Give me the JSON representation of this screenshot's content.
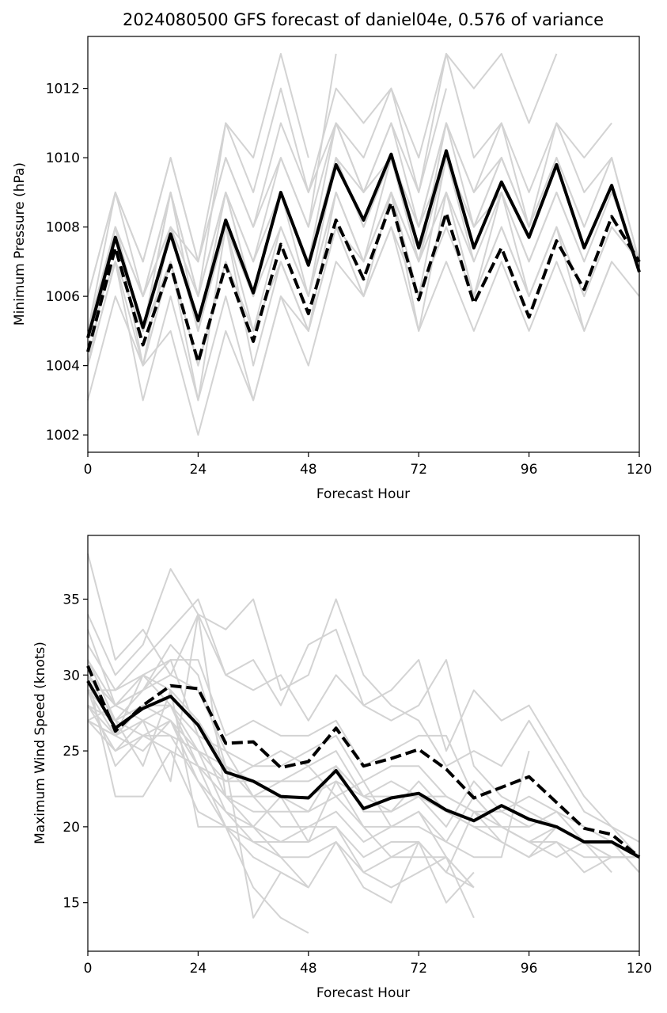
{
  "chart_data": [
    {
      "type": "line",
      "title": "2024080500 GFS forecast of daniel04e, 0.576 of variance",
      "xlabel": "Forecast Hour",
      "ylabel": "Minimum Pressure (hPa)",
      "xlim": [
        0,
        120
      ],
      "ylim": [
        1001.5,
        1013.5
      ],
      "xticks": [
        0,
        24,
        48,
        72,
        96,
        120
      ],
      "yticks": [
        1002,
        1004,
        1006,
        1008,
        1010,
        1012
      ],
      "grid": false,
      "x": [
        0,
        6,
        12,
        18,
        24,
        30,
        36,
        42,
        48,
        54,
        60,
        66,
        72,
        78,
        84,
        90,
        96,
        102,
        108,
        114,
        120
      ],
      "series": [
        {
          "style": "solid",
          "color": "#000000",
          "values": [
            1004.8,
            1007.7,
            1005.1,
            1007.8,
            1005.3,
            1008.2,
            1006.1,
            1009.0,
            1006.9,
            1009.8,
            1008.2,
            1010.1,
            1007.4,
            1010.2,
            1007.4,
            1009.3,
            1007.7,
            1009.8,
            1007.4,
            1009.2,
            1006.7
          ]
        },
        {
          "style": "dashed",
          "color": "#000000",
          "values": [
            1004.4,
            1007.4,
            1004.6,
            1006.9,
            1004.1,
            1006.9,
            1004.7,
            1007.5,
            1005.5,
            1008.2,
            1006.5,
            1008.7,
            1005.9,
            1008.4,
            1005.8,
            1007.4,
            1005.4,
            1007.6,
            1006.2,
            1008.3,
            1007.0
          ]
        }
      ],
      "ensemble_color": "#d3d3d3",
      "ensemble": [
        [
          1003.0,
          1006.0,
          1004.0,
          1005.0,
          1002.0,
          1005.0,
          1003.0,
          1006.0,
          1005.0,
          1008.0,
          1006.0,
          1009.0,
          1005.0,
          1009.0,
          1006.0,
          1009.0,
          1006.0,
          1008.0,
          1005.0,
          1007.0,
          1006.0
        ],
        [
          1004.0,
          1007.0,
          1005.0,
          1007.0,
          1004.0,
          1007.0,
          1005.0,
          1007.0,
          1005.0,
          1008.0,
          1006.0,
          1008.0,
          1006.0,
          1008.0,
          1006.0,
          1008.0,
          1006.0,
          1008.0,
          1006.0,
          1008.0,
          1007.0
        ],
        [
          1005.0,
          1008.0,
          1006.0,
          1008.0,
          1006.0,
          1009.0,
          1006.0,
          1009.0,
          1007.0,
          1010.0,
          1009.0,
          1010.0,
          1007.0,
          1010.0,
          1008.0,
          1010.0,
          1008.0,
          1010.0,
          1008.0,
          1010.0,
          1007.0
        ],
        [
          1006.0,
          1009.0,
          1007.0,
          1010.0,
          1007.0,
          1010.0,
          1008.0,
          1011.0,
          1009.0,
          1012.0,
          1011.0,
          1012.0,
          1010.0,
          1013.0,
          1010.0,
          1011.0,
          1009.0,
          1011.0,
          1010.0,
          1011.0,
          null
        ],
        [
          1004.0,
          1007.0,
          1003.0,
          1006.0,
          1003.0,
          1006.0,
          1003.0,
          1006.0,
          1004.0,
          1007.0,
          1006.0,
          1008.0,
          1005.0,
          1007.0,
          1005.0,
          1007.0,
          1005.0,
          1007.0,
          1005.0,
          1007.0,
          null
        ],
        [
          1005.0,
          1008.0,
          1005.0,
          1008.0,
          1005.0,
          1008.0,
          1006.0,
          1008.0,
          1006.0,
          1009.0,
          1007.0,
          1009.0,
          1007.0,
          1009.0,
          1007.0,
          1009.0,
          1007.0,
          1009.0,
          1007.0,
          null,
          null
        ],
        [
          1004.0,
          1008.0,
          1004.0,
          1008.0,
          1005.0,
          1009.0,
          1007.0,
          1010.0,
          1008.0,
          1011.0,
          1009.0,
          1011.0,
          1008.0,
          1011.0,
          1009.0,
          1011.0,
          1008.0,
          null,
          null,
          null,
          null
        ],
        [
          1005.0,
          1007.0,
          1005.0,
          1009.0,
          1006.0,
          1009.0,
          1006.0,
          1009.0,
          1006.0,
          1010.0,
          1008.0,
          1010.0,
          1008.0,
          1011.0,
          1009.0,
          1010.0,
          1008.0,
          1010.0,
          1008.0,
          null,
          null
        ],
        [
          1004.0,
          1007.0,
          1004.0,
          1007.0,
          1003.0,
          1008.0,
          1005.0,
          1008.0,
          1006.0,
          1009.0,
          1007.0,
          1009.0,
          1006.0,
          1010.0,
          1007.0,
          null,
          null,
          null,
          null,
          null,
          null
        ],
        [
          1005.0,
          1009.0,
          1006.0,
          1009.0,
          1006.0,
          1011.0,
          1009.0,
          1012.0,
          1009.0,
          1011.0,
          1010.0,
          1012.0,
          1009.0,
          1012.0,
          null,
          null,
          null,
          null,
          null,
          null,
          null
        ],
        [
          1004.0,
          1008.0,
          1006.0,
          1008.0,
          1007.0,
          1011.0,
          1010.0,
          1013.0,
          1010.0,
          null,
          null,
          null,
          null,
          null,
          null,
          null,
          null,
          null,
          null,
          null,
          null
        ],
        [
          1005.0,
          1008.0,
          1005.0,
          1009.0,
          1005.0,
          1008.0,
          1006.0,
          1009.0,
          1007.0,
          1011.0,
          1009.0,
          1011.0,
          1009.0,
          1013.0,
          1012.0,
          1013.0,
          1011.0,
          1013.0,
          null,
          null,
          null
        ],
        [
          1005.0,
          1008.0,
          1005.0,
          1008.0,
          1005.0,
          1008.0,
          1004.0,
          1007.0,
          1005.0,
          1009.0,
          1007.0,
          1010.0,
          1007.0,
          1011.0,
          1008.0,
          1009.0,
          1007.0,
          1009.0,
          1007.0,
          1009.0,
          1007.0
        ],
        [
          1006.0,
          1009.0,
          1007.0,
          1010.0,
          1007.0,
          1010.0,
          1008.0,
          1010.0,
          1008.0,
          1013.0,
          null,
          null,
          null,
          null,
          null,
          null,
          null,
          null,
          null,
          null,
          null
        ],
        [
          1004.0,
          1008.0,
          1006.0,
          1009.0,
          1006.0,
          1009.0,
          1007.0,
          1009.0,
          1007.0,
          1010.0,
          1008.0,
          1010.0,
          1008.0,
          1010.0,
          1008.0,
          1010.0,
          1008.0,
          1011.0,
          1009.0,
          1010.0,
          1007.0
        ],
        [
          1005.0,
          1007.0,
          1005.0,
          1007.0,
          1004.0,
          1007.0,
          1005.0,
          1007.0,
          1005.0,
          1008.0,
          1007.0,
          1009.0,
          1007.0,
          1009.0,
          1006.0,
          1008.0,
          1006.0,
          1008.0,
          1006.0,
          1008.0,
          1007.0
        ]
      ]
    },
    {
      "type": "line",
      "xlabel": "Forecast Hour",
      "ylabel": "Maximum Wind Speed (knots)",
      "xlim": [
        0,
        120
      ],
      "ylim": [
        11.8,
        39.2
      ],
      "xticks": [
        0,
        24,
        48,
        72,
        96,
        120
      ],
      "yticks": [
        15,
        20,
        25,
        30,
        35
      ],
      "grid": false,
      "x": [
        0,
        6,
        12,
        18,
        24,
        30,
        36,
        42,
        48,
        54,
        60,
        66,
        72,
        78,
        84,
        90,
        96,
        102,
        108,
        114,
        120
      ],
      "series": [
        {
          "style": "solid",
          "color": "#000000",
          "values": [
            29.6,
            26.5,
            27.8,
            28.6,
            26.7,
            23.6,
            23.0,
            22.0,
            21.9,
            23.7,
            21.2,
            21.9,
            22.2,
            21.1,
            20.4,
            21.4,
            20.5,
            20.0,
            19.0,
            19.0,
            18.0
          ]
        },
        {
          "style": "dashed",
          "color": "#000000",
          "values": [
            30.6,
            26.3,
            28.0,
            29.3,
            29.1,
            25.5,
            25.6,
            23.9,
            24.3,
            26.5,
            24.0,
            24.5,
            25.1,
            23.8,
            21.9,
            22.6,
            23.3,
            21.6,
            19.9,
            19.5,
            18.0
          ]
        }
      ],
      "ensemble_color": "#d3d3d3",
      "ensemble": [
        [
          38.0,
          31.0,
          33.0,
          30.0,
          34.0,
          30.0,
          31.0,
          28.0,
          32.0,
          33.0,
          28.0,
          29.0,
          31.0,
          25.0,
          29.0,
          27.0,
          28.0,
          25.0,
          22.0,
          20.0,
          19.0
        ],
        [
          34.0,
          30.0,
          32.0,
          37.0,
          34.0,
          33.0,
          35.0,
          29.0,
          30.0,
          35.0,
          30.0,
          28.0,
          27.0,
          24.0,
          25.0,
          24.0,
          27.0,
          24.0,
          21.0,
          20.0,
          18.0
        ],
        [
          32.0,
          29.0,
          31.0,
          33.0,
          35.0,
          30.0,
          29.0,
          30.0,
          27.0,
          30.0,
          28.0,
          27.0,
          28.0,
          31.0,
          24.0,
          22.0,
          21.0,
          20.0,
          19.0,
          19.0,
          17.0
        ],
        [
          31.0,
          28.0,
          29.0,
          31.0,
          31.0,
          26.0,
          27.0,
          26.0,
          26.0,
          27.0,
          24.0,
          25.0,
          26.0,
          26.0,
          22.0,
          20.0,
          20.0,
          21.0,
          19.0,
          19.0,
          17.0
        ],
        [
          30.0,
          27.0,
          29.0,
          30.0,
          29.0,
          25.0,
          24.0,
          24.0,
          25.0,
          26.0,
          23.0,
          24.0,
          24.0,
          22.0,
          21.0,
          20.0,
          19.0,
          20.0,
          19.0,
          18.0,
          18.0
        ],
        [
          30.0,
          28.0,
          30.0,
          29.0,
          27.0,
          24.0,
          23.0,
          23.0,
          24.0,
          25.0,
          22.0,
          23.0,
          22.0,
          22.0,
          21.0,
          21.0,
          22.0,
          21.0,
          20.0,
          19.0,
          18.0
        ],
        [
          29.0,
          27.0,
          28.0,
          28.0,
          25.0,
          24.0,
          22.0,
          22.0,
          22.0,
          23.0,
          22.0,
          22.0,
          22.0,
          21.0,
          20.0,
          20.0,
          19.0,
          19.0,
          18.0,
          18.0,
          18.0
        ],
        [
          29.0,
          26.0,
          28.0,
          27.0,
          25.0,
          23.0,
          23.0,
          22.0,
          21.0,
          24.0,
          21.0,
          21.0,
          23.0,
          21.0,
          20.0,
          19.0,
          18.0,
          19.0,
          17.0,
          18.0,
          18.0
        ],
        [
          28.0,
          26.0,
          27.0,
          28.0,
          26.0,
          22.0,
          21.0,
          21.0,
          21.0,
          22.0,
          20.0,
          20.0,
          20.0,
          19.0,
          18.0,
          18.0,
          25.0,
          null,
          null,
          null,
          null
        ],
        [
          28.0,
          27.0,
          26.0,
          27.0,
          24.0,
          22.0,
          22.0,
          20.0,
          20.0,
          21.0,
          19.0,
          20.0,
          21.0,
          18.0,
          14.0,
          null,
          null,
          null,
          null,
          null,
          null
        ],
        [
          27.0,
          25.0,
          27.0,
          26.0,
          25.0,
          21.0,
          20.0,
          19.0,
          20.0,
          20.0,
          18.0,
          19.0,
          19.0,
          17.0,
          16.0,
          null,
          null,
          null,
          null,
          null,
          null
        ],
        [
          27.0,
          26.0,
          25.0,
          27.0,
          23.0,
          21.0,
          19.0,
          19.0,
          19.0,
          20.0,
          17.0,
          18.0,
          18.0,
          18.0,
          16.0,
          null,
          null,
          null,
          null,
          null,
          null
        ],
        [
          28.0,
          25.0,
          26.0,
          25.0,
          24.0,
          20.0,
          19.0,
          18.0,
          18.0,
          19.0,
          16.0,
          15.0,
          19.0,
          15.0,
          17.0,
          null,
          null,
          null,
          null,
          null,
          null
        ],
        [
          29.0,
          24.0,
          26.0,
          26.0,
          23.0,
          20.0,
          18.0,
          17.0,
          16.0,
          19.0,
          17.0,
          16.0,
          17.0,
          18.0,
          16.0,
          null,
          null,
          null,
          null,
          null,
          null
        ],
        [
          30.0,
          22.0,
          22.0,
          25.0,
          21.0,
          20.0,
          16.0,
          14.0,
          13.0,
          null,
          null,
          null,
          null,
          null,
          null,
          null,
          null,
          null,
          null,
          null,
          null
        ],
        [
          33.0,
          28.0,
          29.0,
          32.0,
          30.0,
          24.0,
          14.0,
          17.0,
          16.0,
          null,
          null,
          null,
          null,
          null,
          null,
          null,
          null,
          null,
          null,
          null,
          null
        ],
        [
          31.0,
          27.0,
          24.0,
          29.0,
          20.0,
          20.0,
          20.0,
          18.0,
          16.0,
          null,
          null,
          null,
          null,
          null,
          null,
          null,
          null,
          null,
          null,
          null,
          null
        ],
        [
          27.0,
          28.0,
          27.0,
          23.0,
          34.0,
          22.0,
          20.0,
          22.0,
          19.0,
          23.0,
          20.0,
          18.0,
          19.0,
          17.0,
          21.0,
          19.0,
          18.0,
          20.0,
          19.0,
          17.0,
          null
        ],
        [
          29.0,
          29.0,
          30.0,
          31.0,
          26.0,
          25.0,
          22.0,
          23.0,
          23.0,
          24.0,
          22.0,
          21.0,
          22.0,
          20.0,
          23.0,
          21.0,
          20.0,
          21.0,
          20.0,
          19.0,
          18.0
        ],
        [
          27.0,
          26.0,
          30.0,
          28.0,
          24.0,
          23.0,
          24.0,
          25.0,
          24.0,
          22.0,
          23.0,
          20.0,
          21.0,
          19.0,
          22.0,
          20.0,
          19.0,
          18.0,
          19.0,
          18.0,
          18.0
        ]
      ]
    }
  ]
}
